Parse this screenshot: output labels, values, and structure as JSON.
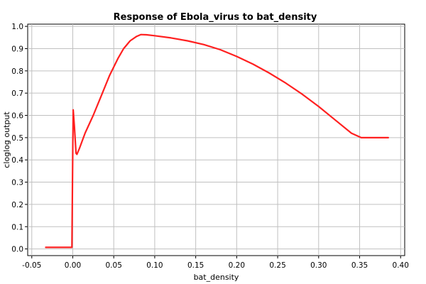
{
  "chart_data": {
    "type": "line",
    "title": "Response of Ebola_virus to bat_density",
    "xlabel": "bat_density",
    "ylabel": "cloglog output",
    "xlim": [
      -0.055,
      0.405
    ],
    "ylim": [
      -0.03,
      1.01
    ],
    "xticks": [
      -0.05,
      0.0,
      0.05,
      0.1,
      0.15,
      0.2,
      0.25,
      0.3,
      0.35,
      0.4
    ],
    "xtick_labels": [
      "-0.05",
      "0.00",
      "0.05",
      "0.10",
      "0.15",
      "0.20",
      "0.25",
      "0.30",
      "0.35",
      "0.40"
    ],
    "yticks": [
      0.0,
      0.1,
      0.2,
      0.3,
      0.4,
      0.5,
      0.6,
      0.7,
      0.8,
      0.9,
      1.0
    ],
    "ytick_labels": [
      "0.0",
      "0.1",
      "0.2",
      "0.3",
      "0.4",
      "0.5",
      "0.6",
      "0.7",
      "0.8",
      "0.9",
      "1.0"
    ],
    "grid": true,
    "series": [
      {
        "color": "#ff2020",
        "x": [
          -0.033,
          -0.001,
          0.0,
          0.0005,
          0.002,
          0.004,
          0.005,
          0.008,
          0.015,
          0.025,
          0.035,
          0.045,
          0.055,
          0.062,
          0.07,
          0.078,
          0.083,
          0.09,
          0.1,
          0.12,
          0.14,
          0.16,
          0.18,
          0.2,
          0.22,
          0.24,
          0.26,
          0.28,
          0.3,
          0.32,
          0.34,
          0.352,
          0.385
        ],
        "y": [
          0.007,
          0.007,
          0.45,
          0.625,
          0.55,
          0.43,
          0.425,
          0.45,
          0.52,
          0.6,
          0.69,
          0.78,
          0.855,
          0.9,
          0.935,
          0.955,
          0.963,
          0.962,
          0.958,
          0.948,
          0.935,
          0.918,
          0.895,
          0.865,
          0.83,
          0.79,
          0.745,
          0.695,
          0.64,
          0.58,
          0.52,
          0.5,
          0.5
        ]
      }
    ]
  }
}
